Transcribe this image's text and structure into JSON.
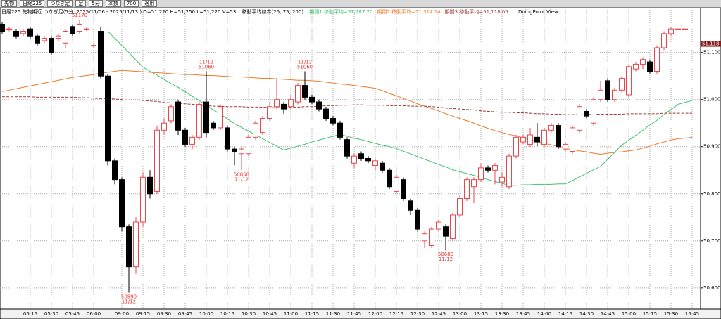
{
  "toolbar": [
    "先物",
    "日経225",
    "つなぎ足",
    "足",
    "5分",
    "本数",
    "700",
    "適用"
  ],
  "chart_data": {
    "type": "candlestick",
    "title": "日経225 先物期近 つなぎ足(5分, 2025/11/06 - 2025/11/13 ) O=51,220 H=51,250 L=51,220 V=53",
    "subtitle": "移動平均線本(25, 75, 200)",
    "note": "DoingPoint View",
    "categories": [
      null,
      null,
      null,
      null,
      "05:15",
      null,
      null,
      "05:30",
      null,
      null,
      "05:45",
      null,
      null,
      "06:00",
      null,
      null,
      null,
      "09:00",
      null,
      null,
      "09:15",
      null,
      null,
      "09:30",
      null,
      null,
      "09:45",
      null,
      null,
      "10:00",
      null,
      null,
      "10:15",
      null,
      null,
      "10:30",
      null,
      null,
      "10:45",
      null,
      null,
      "11:00",
      null,
      null,
      "11:15",
      null,
      null,
      "11:30",
      null,
      null,
      "11:45",
      null,
      null,
      "12:00",
      null,
      null,
      "12:15",
      null,
      null,
      "12:30",
      null,
      null,
      "12:45",
      null,
      null,
      "13:00",
      null,
      null,
      "13:15",
      null,
      null,
      "13:30",
      null,
      null,
      "13:45",
      null,
      null,
      "14:00",
      null,
      null,
      "14:15",
      null,
      null,
      "14:30",
      null,
      null,
      "14:45",
      null,
      null,
      "15:00",
      null,
      null,
      "15:15",
      null,
      null,
      "15:30",
      null,
      null,
      "15:45"
    ],
    "open": [
      51160,
      51150,
      51145,
      51140,
      51150,
      51135,
      51125,
      51130,
      51130,
      51120,
      51155,
      51145,
      51150,
      51115,
      51145,
      51050,
      50870,
      50830,
      50730,
      50645,
      50740,
      50835,
      50805,
      50935,
      50955,
      50995,
      50935,
      50905,
      50920,
      50995,
      50950,
      50940,
      50940,
      50895,
      50885,
      50885,
      50920,
      50930,
      50960,
      50985,
      50990,
      50985,
      50995,
      51030,
      51005,
      50995,
      50980,
      50960,
      50950,
      50915,
      50865,
      50885,
      50875,
      50860,
      50865,
      50850,
      50805,
      50830,
      50785,
      50765,
      50700,
      50690,
      50725,
      50730,
      50705,
      50755,
      50790,
      50815,
      50830,
      50855,
      50850,
      50825,
      50815,
      50880,
      50910,
      50905,
      50920,
      50905,
      50935,
      50945,
      50895,
      50890,
      50935,
      50975,
      50950,
      51000,
      51040,
      51000,
      51020,
      51010,
      51065,
      51075,
      51080,
      51060,
      51110,
      51140,
      51150,
      51150,
      null
    ],
    "high": [
      51165,
      51155,
      51150,
      51150,
      51155,
      51140,
      51135,
      51135,
      51140,
      51150,
      51160,
      51170,
      51155,
      51120,
      51155,
      51055,
      50875,
      50835,
      50735,
      50750,
      50845,
      50850,
      50945,
      50960,
      50990,
      51000,
      50940,
      50925,
      50995,
      51060,
      50955,
      50990,
      50945,
      50900,
      50900,
      50925,
      50955,
      50965,
      50995,
      51045,
      50995,
      51010,
      51035,
      51060,
      51010,
      51000,
      50985,
      50965,
      50955,
      50920,
      50885,
      50890,
      50880,
      50875,
      50870,
      50855,
      50840,
      50835,
      50790,
      50770,
      50720,
      50730,
      50745,
      50735,
      50760,
      50795,
      50835,
      50835,
      50865,
      50860,
      50865,
      50845,
      50885,
      50925,
      50925,
      50940,
      50950,
      50940,
      50950,
      50950,
      50910,
      50945,
      50990,
      50980,
      51005,
      51040,
      51045,
      51025,
      51050,
      51075,
      51080,
      51090,
      51085,
      51115,
      51145,
      51155,
      51150,
      51150,
      null
    ],
    "low": [
      51140,
      51145,
      51130,
      51135,
      51130,
      51115,
      51120,
      51095,
      51125,
      51110,
      51135,
      51140,
      51145,
      51110,
      51045,
      50860,
      50820,
      50720,
      50590,
      50630,
      50730,
      50790,
      50800,
      50925,
      50950,
      50925,
      50900,
      50895,
      50915,
      50920,
      50935,
      50935,
      50890,
      50860,
      50850,
      50880,
      50915,
      50925,
      50955,
      50980,
      50970,
      50980,
      50990,
      51000,
      50990,
      50975,
      50955,
      50945,
      50915,
      50875,
      50855,
      50870,
      50865,
      50850,
      50845,
      50810,
      50800,
      50785,
      50755,
      50720,
      50685,
      50685,
      50720,
      50680,
      50700,
      50750,
      50785,
      50780,
      50825,
      50845,
      50820,
      50815,
      50810,
      50875,
      50905,
      50900,
      50900,
      50900,
      50930,
      50895,
      50890,
      50885,
      50930,
      50960,
      50945,
      50995,
      50995,
      50995,
      51015,
      51005,
      51060,
      51065,
      51055,
      51055,
      51105,
      51135,
      51150,
      51150,
      null
    ],
    "close": [
      51145,
      51150,
      51135,
      51145,
      51135,
      51120,
      51130,
      51100,
      51135,
      51145,
      51140,
      51160,
      51150,
      51115,
      51050,
      50870,
      50830,
      50730,
      50645,
      50740,
      50835,
      50800,
      50935,
      50950,
      50985,
      50935,
      50905,
      50920,
      50990,
      50930,
      50940,
      50985,
      50895,
      50890,
      50895,
      50920,
      50950,
      50960,
      50985,
      51000,
      50980,
      51000,
      51030,
      51005,
      50995,
      50980,
      50960,
      50950,
      50920,
      50880,
      50880,
      50875,
      50870,
      50870,
      50850,
      50815,
      50835,
      50790,
      50765,
      50725,
      50715,
      50725,
      50740,
      50710,
      50755,
      50790,
      50830,
      50830,
      50855,
      50850,
      50860,
      50835,
      50880,
      50920,
      50920,
      50925,
      50910,
      50935,
      50945,
      50900,
      50905,
      50940,
      50985,
      50965,
      51000,
      51020,
      51000,
      51020,
      51045,
      51070,
      51075,
      51085,
      51060,
      51110,
      51140,
      51150,
      51150,
      51150,
      null
    ],
    "up_color": "#e8474c",
    "down_color": "#000000",
    "series": [
      {
        "name": "期間1 移動平均=51,287.20",
        "color": "#3cc46a",
        "dashed": false,
        "values": [
          null,
          null,
          null,
          null,
          null,
          null,
          null,
          null,
          null,
          null,
          null,
          null,
          null,
          null,
          null,
          51145,
          51130,
          51115,
          51100,
          51084,
          51069,
          51060,
          51052,
          51043,
          51034,
          51026,
          51017,
          51007,
          50998,
          50988,
          50978,
          50969,
          50959,
          50949,
          50941,
          50933,
          50925,
          50917,
          50909,
          50901,
          50893,
          50897,
          50901,
          50905,
          50910,
          50914,
          50918,
          50922,
          50926,
          50922,
          50918,
          50915,
          50911,
          50907,
          50903,
          50900,
          50896,
          50890,
          50885,
          50879,
          50873,
          50868,
          50862,
          50857,
          50851,
          50847,
          50843,
          50839,
          50835,
          50830,
          50826,
          50822,
          50818,
          50818,
          50819,
          50819,
          50820,
          50820,
          50820,
          50821,
          50821,
          50828,
          50836,
          50843,
          50851,
          50858,
          50873,
          50888,
          50903,
          50914,
          50924,
          50935,
          50946,
          50956,
          50968,
          50979,
          50990,
          50994,
          50998
        ]
      },
      {
        "name": "期間2 移動平均=51,314.14",
        "color": "#f07a2a",
        "dashed": false,
        "values": [
          51017,
          51020,
          51023,
          51026,
          51029,
          51032,
          51035,
          51038,
          51041,
          51044,
          51047,
          51049,
          51051,
          51053,
          51056,
          51058,
          51060,
          51062,
          51061,
          51060,
          51059,
          51058,
          51057,
          51056,
          51055,
          51054,
          51053,
          51053,
          51052,
          51051,
          51051,
          51050,
          51049,
          51048,
          51048,
          51047,
          51046,
          51045,
          51045,
          51044,
          51043,
          51042,
          51041,
          51041,
          51040,
          51039,
          51037,
          51035,
          51033,
          51032,
          51030,
          51028,
          51026,
          51024,
          51019,
          51013,
          51008,
          51002,
          50997,
          50991,
          50986,
          50981,
          50976,
          50970,
          50965,
          50960,
          50955,
          50950,
          50944,
          50939,
          50934,
          50930,
          50926,
          50923,
          50919,
          50915,
          50911,
          50907,
          50904,
          50900,
          50896,
          50894,
          50891,
          50889,
          50886,
          50884,
          50886,
          50888,
          50889,
          50891,
          50893,
          50897,
          50901,
          50906,
          50910,
          50914,
          50917,
          50918,
          50920
        ]
      },
      {
        "name": "期間3 移動平均=51,118.05",
        "color": "#a23a3a",
        "dashed": true,
        "values": [
          51006,
          51006,
          51006,
          51006,
          51006,
          51005,
          51005,
          51005,
          51005,
          51005,
          51005,
          51004,
          51004,
          51003,
          51002,
          51002,
          51001,
          51000,
          50999,
          50999,
          50998,
          50997,
          50996,
          50994,
          50993,
          50992,
          50991,
          50990,
          50988,
          50987,
          50986,
          50986,
          50985,
          50985,
          50985,
          50984,
          50984,
          50984,
          50983,
          50983,
          50983,
          50984,
          50984,
          50985,
          50985,
          50986,
          50987,
          50987,
          50988,
          50988,
          50989,
          50989,
          50988,
          50988,
          50988,
          50987,
          50987,
          50987,
          50986,
          50986,
          50986,
          50985,
          50984,
          50982,
          50981,
          50980,
          50979,
          50978,
          50976,
          50975,
          50974,
          50973,
          50973,
          50972,
          50972,
          50971,
          50970,
          50970,
          50969,
          50969,
          50968,
          50968,
          50968,
          50968,
          50969,
          50969,
          50969,
          50969,
          50969,
          50970,
          50970,
          50970,
          50970,
          50970,
          50971,
          50971,
          50971,
          50971,
          50971
        ]
      }
    ],
    "ylim": [
      50555,
      51195
    ],
    "yticks": [
      {
        "value": 50600,
        "label": "50,600"
      },
      {
        "value": 50700,
        "label": "50,700"
      },
      {
        "value": 50800,
        "label": "50,800"
      },
      {
        "value": 50900,
        "label": "50,900"
      },
      {
        "value": 51000,
        "label": "51,000"
      },
      {
        "value": 51100,
        "label": "51,100"
      }
    ],
    "price_tag": {
      "value": 51118.05,
      "label": "51,118.05"
    },
    "grid": true,
    "annotations": [
      {
        "price": 51170,
        "kind": "high"
      },
      {
        "price": 50590,
        "date": "11/12",
        "kind": "low"
      },
      {
        "price": 51060,
        "date": "11/12",
        "kind": "high"
      },
      {
        "price": 50850,
        "date": "11/12",
        "kind": "low"
      },
      {
        "price": 51060,
        "date": "11/12",
        "kind": "high"
      },
      {
        "price": 50680,
        "date": "11/12",
        "kind": "low"
      }
    ]
  }
}
